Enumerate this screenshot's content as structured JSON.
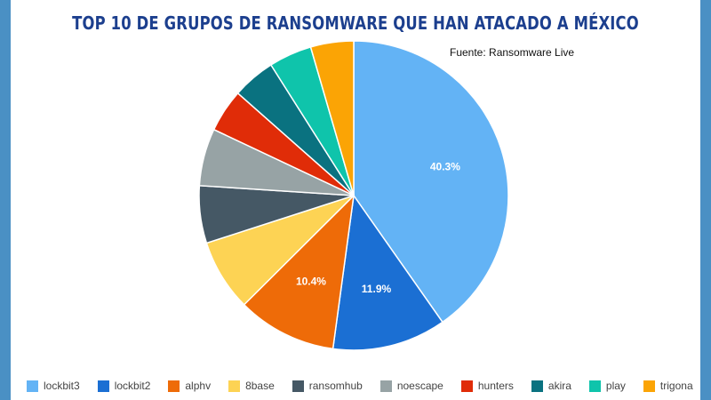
{
  "chart_data": {
    "type": "pie",
    "title": "TOP 10 DE GRUPOS DE RANSOMWARE QUE HAN ATACADO A MÉXICO",
    "source": "Fuente: Ransomware Live",
    "legend_position": "bottom",
    "slice_labels_shown": [
      "lockbit3",
      "lockbit2",
      "alphv"
    ],
    "series": [
      {
        "name": "lockbit3",
        "value": 40.3,
        "color": "#63b3f5"
      },
      {
        "name": "lockbit2",
        "value": 11.9,
        "color": "#1b6fd3"
      },
      {
        "name": "alphv",
        "value": 10.4,
        "color": "#ee6b08"
      },
      {
        "name": "8base",
        "value": 7.5,
        "color": "#fdd354"
      },
      {
        "name": "ransomhub",
        "value": 6.0,
        "color": "#455865"
      },
      {
        "name": "noescape",
        "value": 6.0,
        "color": "#97a3a5"
      },
      {
        "name": "hunters",
        "value": 4.5,
        "color": "#e02c08"
      },
      {
        "name": "akira",
        "value": 4.5,
        "color": "#0a7280"
      },
      {
        "name": "play",
        "value": 4.5,
        "color": "#0fc4ab"
      },
      {
        "name": "trigona",
        "value": 4.5,
        "color": "#fba405"
      }
    ]
  }
}
